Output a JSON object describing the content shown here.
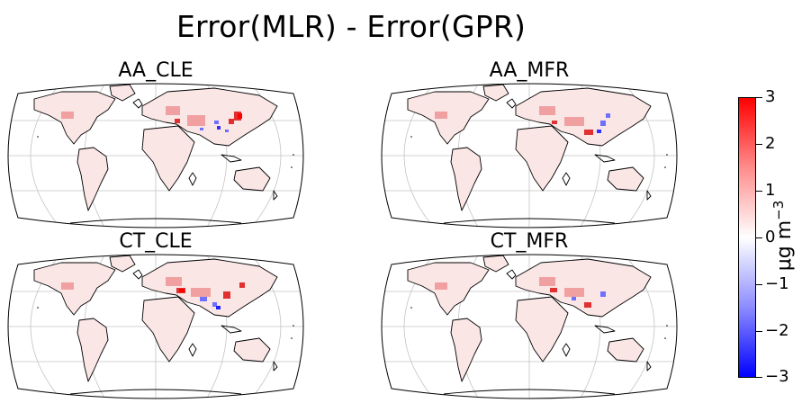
{
  "figure": {
    "title": "Error(MLR) - Error(GPR)"
  },
  "panels": [
    {
      "title": "AA_CLE"
    },
    {
      "title": "AA_MFR"
    },
    {
      "title": "CT_CLE"
    },
    {
      "title": "CT_MFR"
    }
  ],
  "colorbar": {
    "label_prefix": "μg m",
    "label_exponent": "−3",
    "ticks": [
      "3",
      "2",
      "1",
      "0",
      "−1",
      "−2",
      "−3"
    ],
    "range": [
      -3,
      3
    ],
    "colormap": "bwr",
    "colors": {
      "high": "#ff0000",
      "mid": "#ffffff",
      "low": "#0000ff"
    }
  },
  "map": {
    "projection": "Robinson",
    "coastline_color": "#000000",
    "gridline_color": "#bdbdbd"
  }
}
